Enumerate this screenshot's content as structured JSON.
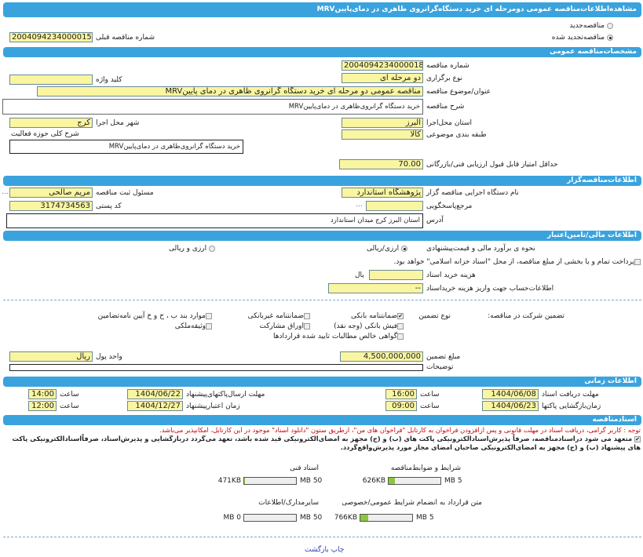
{
  "title": "مشاهده‌اطلاعات‌مناقصه عمومی دومرحله ای خرید دستگاه‌گرانروی ظاهری در دمای‌پایینMRV",
  "tender_type": {
    "new": "مناقصه‌جدید",
    "renewed": "مناقصه‌تجدید شده",
    "selected": "renewed"
  },
  "previous": {
    "label": "شماره مناقصه قبلی",
    "value": "2004094234000015"
  },
  "general": {
    "header": "مشخصات‌مناقصه عمومی",
    "number_label": "شماره مناقصه",
    "number": "2004094234000018",
    "method_label": "نوع برگزاری",
    "method": "دو مرحله ای",
    "keyword_label": "کلید واژه",
    "keyword": "",
    "subject_label": "عنوان/موضوع مناقصه",
    "subject": "مناقصه عمومی دو مرحله ای خرید دستگاه گرانروی ظاهری در دمای پایینMRV",
    "desc_label": "شرح مناقصه",
    "desc": "خرید دستگاه گرانروی‌ظاهری در دمای‌پایینMRV",
    "province_label": "استان محل‌اجرا",
    "province": "البرز",
    "city_label": "شهر محل اجرا",
    "city": "کرج",
    "activity_label": "شرح کلی حوزه فعالیت",
    "activity": "خرید دستگاه گرانروی‌ظاهری در دمای‌پایینMRV",
    "category_label": "طبقه بندی موضوعی",
    "category": "کالا",
    "score_label": "حداقل امتیاز قابل قبول ارزیابی فنی/بازرگانی",
    "score": "70.00"
  },
  "organizer": {
    "header": "اطلاعات‌مناقصه‌گزار",
    "org_label": "نام دستگاه اجرایی مناقصه گزار",
    "org": "پژوهشگاه استاندارد",
    "resp_label": "مسئول ثبت مناقصه",
    "resp": "مریم صالحی",
    "ref_label": "مرجع‌پاسخگویی",
    "ref": "",
    "postal_label": "کد پستی",
    "postal": "3174734563",
    "address_label": "آدرس",
    "address": "استان البرز کرج میدان استاندارد",
    "more": "..."
  },
  "finance": {
    "header": "اطلاعات مالی/تامین‌اعتبار",
    "estimate_label": "نحوه ی برآورد مالی و قیمت‌پیشنهادی",
    "opt1": "ارزی/ریالی",
    "opt2": "ارزی و ریالی",
    "treasury": "پرداخت تمام و یا بخشی از مبلغ مناقصه، از محل \"اسناد خزانه اسلامی\" خواهد بود.",
    "doc_cost_label": "هزینه خرید اسناد",
    "doc_cost": "",
    "doc_cost_unit": "یال",
    "account_label": "اطلاعات‌حساب جهت واریز هزینه خریداسناد",
    "account": "--",
    "guarantee_label": "تضمین شرکت در مناقصه:",
    "guarantee_type_label": "نوع تضمین",
    "guarantees": [
      {
        "label": "ضمانتنامه بانکی",
        "checked": true
      },
      {
        "label": "ضمانتنامه غیربانکی",
        "checked": false
      },
      {
        "label": "موارد بند ب ، ح و خ آیین نامه‌تضامین",
        "checked": false
      },
      {
        "label": "فیش بانکی (وجه نقد)",
        "checked": false
      },
      {
        "label": "اوراق مشارکت",
        "checked": false
      },
      {
        "label": "وثیقه‌ملکی",
        "checked": false
      },
      {
        "label": "گواهی خالص مطالبات تایید شده قراردادها",
        "checked": false
      }
    ],
    "amount_label": "مبلغ تضمین",
    "amount": "4,500,000,000",
    "currency_label": "واحد پول",
    "currency": "ریال",
    "notes_label": "توضیحات",
    "notes": ""
  },
  "timing": {
    "header": "اطلاعات زمانی",
    "doc_deadline_label": "مهلت دریافت اسناد",
    "doc_deadline": "1404/06/08",
    "doc_deadline_time": "16:00",
    "submit_label": "مهلت ارسال‌پاکتهای‌پیشنهاد",
    "submit": "1404/06/22",
    "submit_time": "14:00",
    "opening_label": "زمان‌بازگشایی پاکتها",
    "opening": "1404/06/23",
    "opening_time": "09:00",
    "validity_label": "زمان اعتبارپیشنهاد",
    "validity": "1404/12/27",
    "validity_time": "12:00",
    "hour_label": "ساعت"
  },
  "documents": {
    "header": "اسنادمناقصه",
    "notice": "توجه : کاربر گرامی، دریافت اسناد در مهلت قانونی و پس ازافزودن فراخوان به کارتابل \"فراخوان های من\"، ازطریق ستون \"دانلود اسناد\" موجود در این کارتابل، امکانپذیر می‌باشد.",
    "commit1": "متعهد می شود دراسنادمناقصه، صرفاً پذیرش‌اسنادالکترونیکی پاکت های (ب) و (ج) مجهز به امضای‌الکترونیکی قید شده باشد، تعهد می‌گردد دربازگشایی و پذیرش‌اسناد، صرفاًاسنادالکترونیکی پاکت های",
    "commit2": "پیشنهاد (ب) و (ج) مجهز به امضای‌الکترونیکی صاحبان امضای مجاز مورد پذیرش‌واقع‌گردد.",
    "files": [
      {
        "label": "شرایط و ضوابط‌مناقصه",
        "size": "626KB",
        "max": "5 MB",
        "fill": 0.12
      },
      {
        "label": "اسناد فنی",
        "size": "471KB",
        "max": "50 MB",
        "fill": 0.01
      },
      {
        "label": "متن قرارداد به انضمام شرایط عمومی/خصوصی",
        "size": "766KB",
        "max": "5 MB",
        "fill": 0.15
      },
      {
        "label": "سایرمدارک/اطلاعات",
        "size": "0 MB",
        "max": "50 MB",
        "fill": 0
      }
    ]
  },
  "footer": {
    "print": "چاپ",
    "back": "بازگشت"
  },
  "colors": {
    "header": "#3aa3dd",
    "input": "#faf5a0",
    "notice": "#cc0000",
    "progress": "#8cc63f"
  }
}
